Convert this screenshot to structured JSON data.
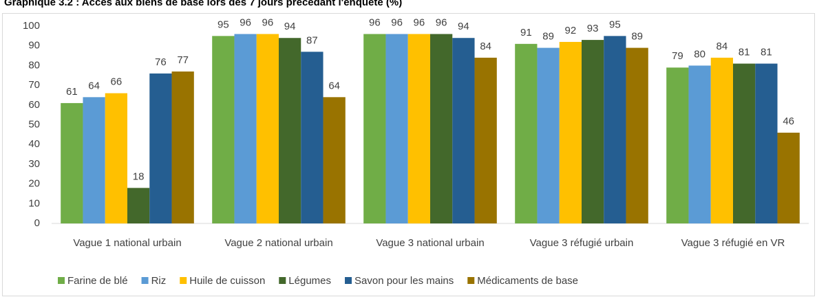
{
  "chart_data": {
    "type": "bar",
    "title": "Graphique 3.2 : Accès aux biens de base lors des 7 jours précédant l'enquête (%)",
    "categories": [
      "Vague 1 national urbain",
      "Vague 2 national urbain",
      "Vague 3 national urbain",
      "Vague 3 réfugié urbain",
      "Vague 3 réfugié en VR"
    ],
    "series": [
      {
        "name": "Farine de blé",
        "color": "#70ad47",
        "values": [
          61,
          95,
          96,
          91,
          79
        ]
      },
      {
        "name": "Riz",
        "color": "#5b9bd5",
        "values": [
          64,
          96,
          96,
          89,
          80
        ]
      },
      {
        "name": "Huile de cuisson",
        "color": "#ffc000",
        "values": [
          66,
          96,
          96,
          92,
          84
        ]
      },
      {
        "name": "Légumes",
        "color": "#43682b",
        "values": [
          18,
          94,
          96,
          93,
          81
        ]
      },
      {
        "name": "Savon pour les mains",
        "color": "#255e91",
        "values": [
          76,
          87,
          94,
          95,
          81
        ]
      },
      {
        "name": "Médicaments de base",
        "color": "#997300",
        "values": [
          77,
          64,
          84,
          89,
          46
        ]
      }
    ],
    "ylim": [
      0,
      100
    ],
    "yticks": [
      0,
      10,
      20,
      30,
      40,
      50,
      60,
      70,
      80,
      90,
      100
    ],
    "grid": false,
    "legend": "bottom"
  }
}
